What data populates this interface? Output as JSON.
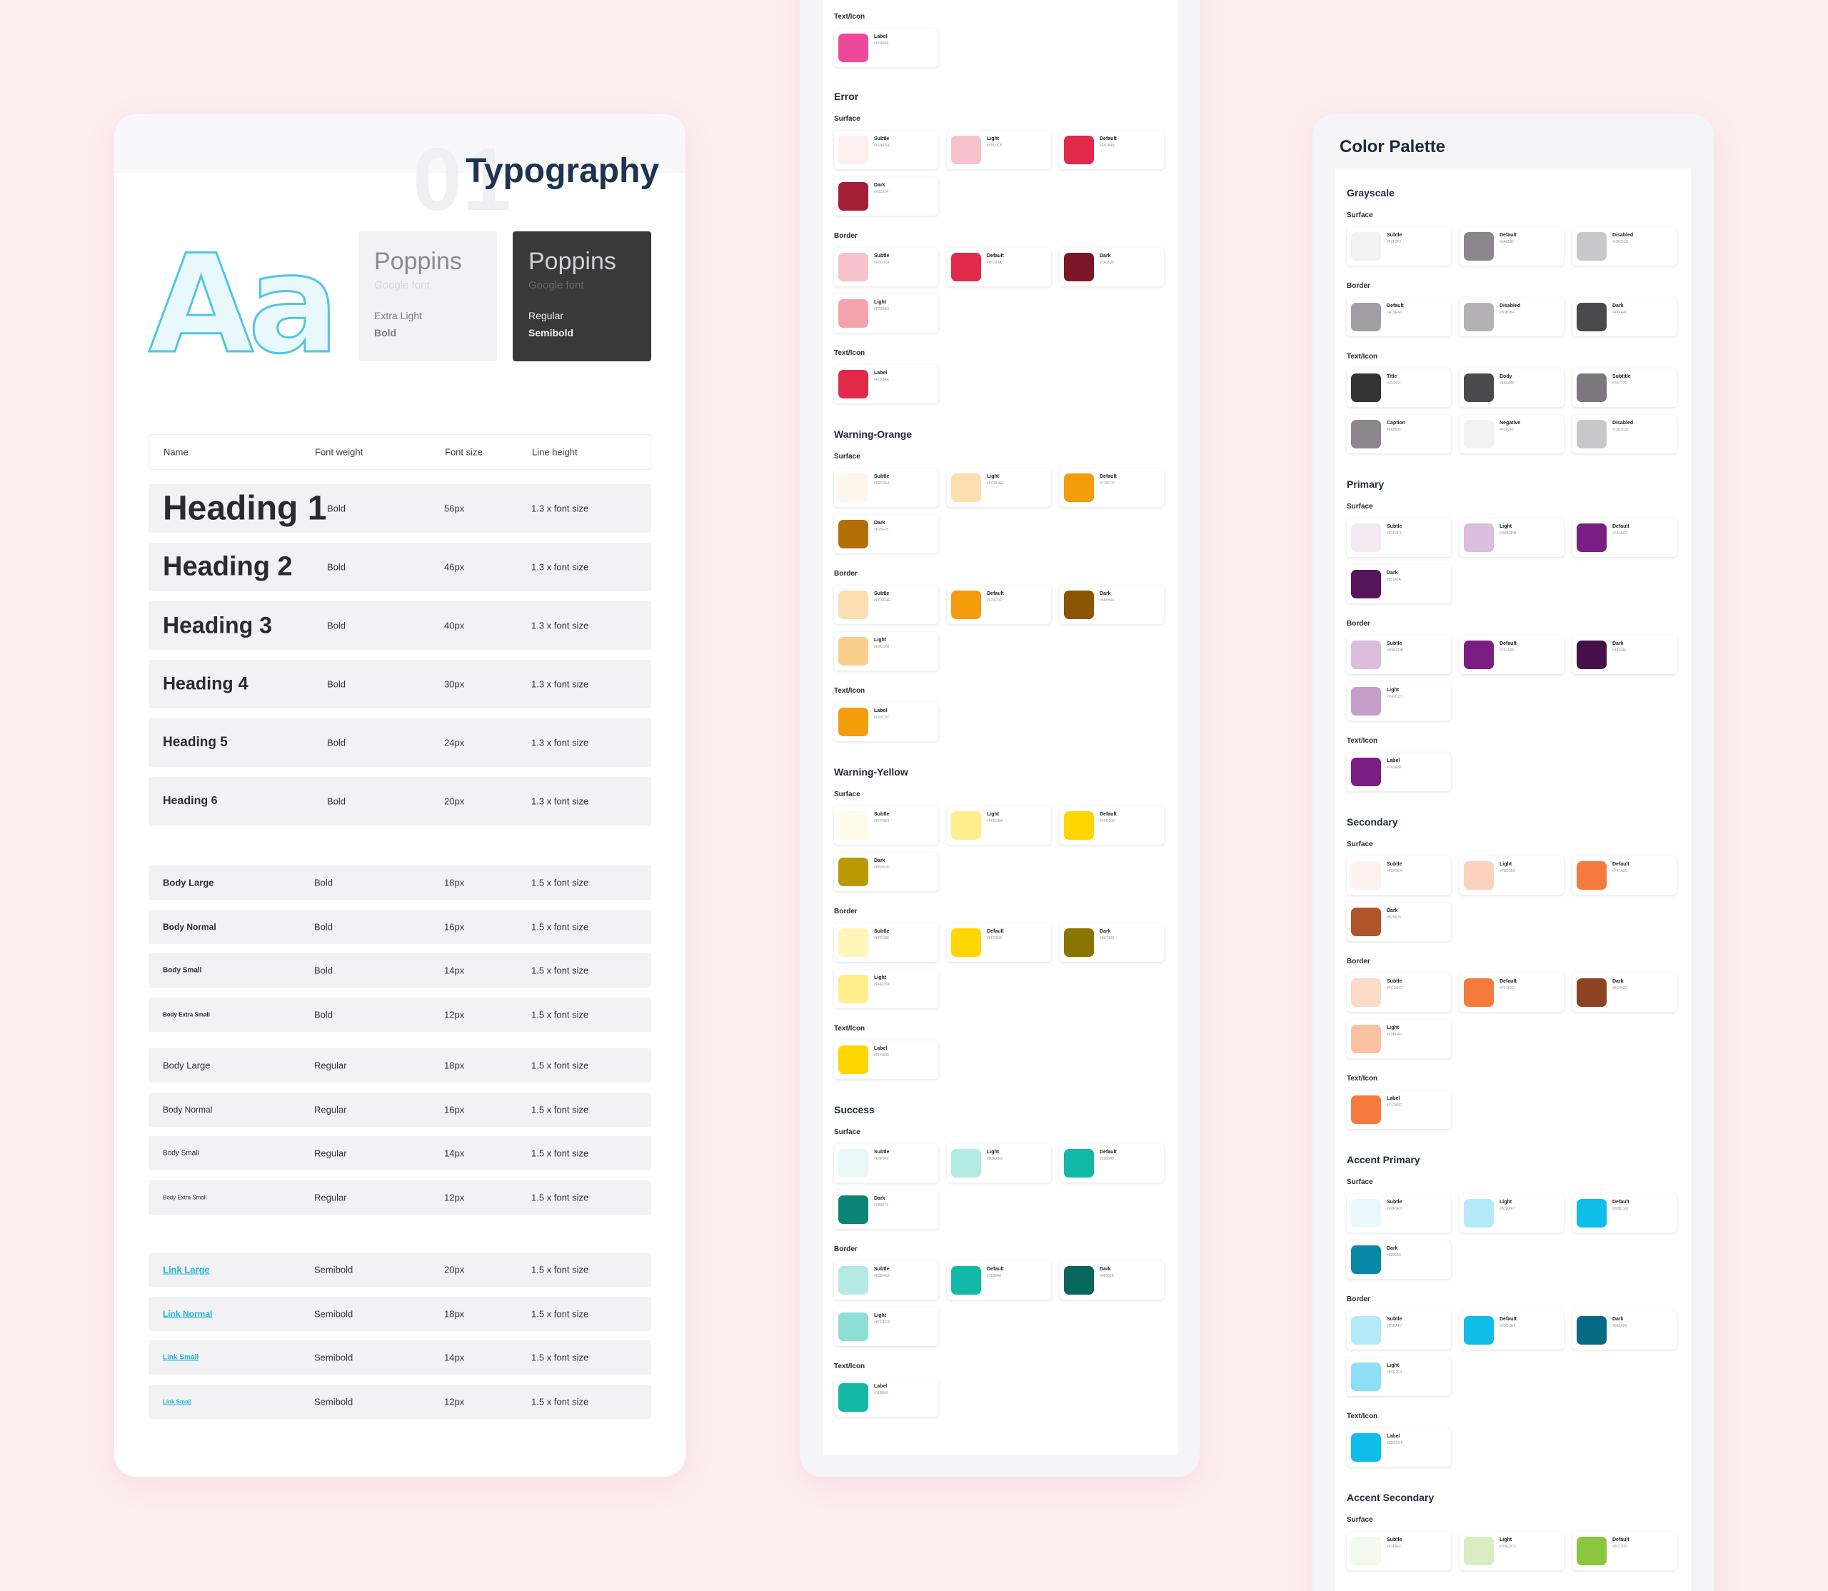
{
  "typography": {
    "number": "01",
    "title": "Typography",
    "specimen": "Aa",
    "font_light": {
      "name": "Poppins",
      "source": "Google font",
      "weight1": "Extra Light",
      "weight2": "Bold"
    },
    "font_dark": {
      "name": "Poppins",
      "source": "Google font",
      "weight1": "Regular",
      "weight2": "Semibold"
    },
    "headers": {
      "name": "Name",
      "weight": "Font weight",
      "size": "Font size",
      "line": "Line height"
    },
    "headings": [
      {
        "name": "Heading 1",
        "weight": "Bold",
        "size": "56px",
        "line": "1.3 x font size"
      },
      {
        "name": "Heading 2",
        "weight": "Bold",
        "size": "46px",
        "line": "1.3 x font size"
      },
      {
        "name": "Heading 3",
        "weight": "Bold",
        "size": "40px",
        "line": "1.3 x font size"
      },
      {
        "name": "Heading 4",
        "weight": "Bold",
        "size": "30px",
        "line": "1.3 x font size"
      },
      {
        "name": "Heading 5",
        "weight": "Bold",
        "size": "24px",
        "line": "1.3 x font size"
      },
      {
        "name": "Heading 6",
        "weight": "Bold",
        "size": "20px",
        "line": "1.3 x font size"
      }
    ],
    "body_bold": [
      {
        "name": "Body Large",
        "weight": "Bold",
        "size": "18px",
        "line": "1.5 x font size"
      },
      {
        "name": "Body Normal",
        "weight": "Bold",
        "size": "16px",
        "line": "1.5 x font size"
      },
      {
        "name": "Body Small",
        "weight": "Bold",
        "size": "14px",
        "line": "1.5 x font size"
      },
      {
        "name": "Body Extra Small",
        "weight": "Bold",
        "size": "12px",
        "line": "1.5 x font size"
      }
    ],
    "body_regular": [
      {
        "name": "Body Large",
        "weight": "Regular",
        "size": "18px",
        "line": "1.5 x font size"
      },
      {
        "name": "Body Normal",
        "weight": "Regular",
        "size": "16px",
        "line": "1.5 x font size"
      },
      {
        "name": "Body Small",
        "weight": "Regular",
        "size": "14px",
        "line": "1.5 x font size"
      },
      {
        "name": "Body Extra Small",
        "weight": "Regular",
        "size": "12px",
        "line": "1.5 x font size"
      }
    ],
    "links": [
      {
        "name": "Link Large",
        "weight": "Semibold",
        "size": "20px",
        "line": "1.5 x font size"
      },
      {
        "name": "Link Normal",
        "weight": "Semibold",
        "size": "18px",
        "line": "1.5 x font size"
      },
      {
        "name": "Link Small",
        "weight": "Semibold",
        "size": "14px",
        "line": "1.5 x font size"
      },
      {
        "name": "Link Small",
        "weight": "Semibold",
        "size": "12px",
        "line": "1.5 x font size"
      }
    ]
  },
  "middle_palette": {
    "top_section": {
      "sub": "Text/Icon",
      "swatches": [
        {
          "name": "Label",
          "hex": "#F0459A",
          "color": "#ef4898"
        }
      ]
    },
    "groups": [
      {
        "title": "Error",
        "sections": [
          {
            "sub": "Surface",
            "swatches": [
              {
                "name": "Subtle",
                "hex": "#FDEDEF",
                "color": "#fdeef0"
              },
              {
                "name": "Light",
                "hex": "#F5C0C8",
                "color": "#f7c2c9"
              },
              {
                "name": "Default",
                "hex": "#E0284A",
                "color": "#e2294a"
              },
              {
                "name": "Dark",
                "hex": "#A11E34",
                "color": "#a21e34"
              }
            ]
          },
          {
            "sub": "Border",
            "swatches": [
              {
                "name": "Subtle",
                "hex": "#F5C0C8",
                "color": "#f7c2c9"
              },
              {
                "name": "Default",
                "hex": "#E0284A",
                "color": "#e2294a"
              },
              {
                "name": "Dark",
                "hex": "#7A1526",
                "color": "#7b1626"
              },
              {
                "name": "Light",
                "hex": "#F29BA9",
                "color": "#f4a3ad"
              }
            ]
          },
          {
            "sub": "Text/Icon",
            "swatches": [
              {
                "name": "Label",
                "hex": "#E0284A",
                "color": "#e2294a"
              }
            ]
          }
        ]
      },
      {
        "title": "Warning-Orange",
        "sections": [
          {
            "sub": "Surface",
            "swatches": [
              {
                "name": "Subtle",
                "hex": "#FEF6EA",
                "color": "#fef6ea"
              },
              {
                "name": "Light",
                "hex": "#FCDDAE",
                "color": "#fcdfb1"
              },
              {
                "name": "Default",
                "hex": "#F29C0C",
                "color": "#f39c0c"
              },
              {
                "name": "Dark",
                "hex": "#B26F05",
                "color": "#b26f05"
              }
            ]
          },
          {
            "sub": "Border",
            "swatches": [
              {
                "name": "Subtle",
                "hex": "#FCDDAE",
                "color": "#fcdfb1"
              },
              {
                "name": "Default",
                "hex": "#F29C0C",
                "color": "#f39c0c"
              },
              {
                "name": "Dark",
                "hex": "#8A5504",
                "color": "#8b5604"
              },
              {
                "name": "Light",
                "hex": "#F9CC88",
                "color": "#f9cf8c"
              }
            ]
          },
          {
            "sub": "Text/Icon",
            "swatches": [
              {
                "name": "Label",
                "hex": "#F29C0C",
                "color": "#f39c0c"
              }
            ]
          }
        ]
      },
      {
        "title": "Warning-Yellow",
        "sections": [
          {
            "sub": "Surface",
            "swatches": [
              {
                "name": "Subtle",
                "hex": "#FFFBE8",
                "color": "#fffbe8"
              },
              {
                "name": "Light",
                "hex": "#FFED8A",
                "color": "#ffee8c"
              },
              {
                "name": "Default",
                "hex": "#FFD600",
                "color": "#ffd600"
              },
              {
                "name": "Dark",
                "hex": "#B89B00",
                "color": "#b89b03"
              }
            ]
          },
          {
            "sub": "Border",
            "swatches": [
              {
                "name": "Subtle",
                "hex": "#FFF5B8",
                "color": "#fff5b9"
              },
              {
                "name": "Default",
                "hex": "#FFD600",
                "color": "#ffd600"
              },
              {
                "name": "Dark",
                "hex": "#8A7400",
                "color": "#8a7502"
              },
              {
                "name": "Light",
                "hex": "#FFED8A",
                "color": "#ffee8c"
              }
            ]
          },
          {
            "sub": "Text/Icon",
            "swatches": [
              {
                "name": "Label",
                "hex": "#FFD600",
                "color": "#ffd600"
              }
            ]
          }
        ]
      },
      {
        "title": "Success",
        "sections": [
          {
            "sub": "Surface",
            "swatches": [
              {
                "name": "Subtle",
                "hex": "#E6F8F6",
                "color": "#e7f8f6"
              },
              {
                "name": "Light",
                "hex": "#B3EAE3",
                "color": "#b3eae4"
              },
              {
                "name": "Default",
                "hex": "#11B8A6",
                "color": "#12b9a7"
              },
              {
                "name": "Dark",
                "hex": "#0B8275",
                "color": "#0b8375"
              }
            ]
          },
          {
            "sub": "Border",
            "swatches": [
              {
                "name": "Subtle",
                "hex": "#B3EAE3",
                "color": "#b3eae4"
              },
              {
                "name": "Default",
                "hex": "#11B8A6",
                "color": "#12b9a7"
              },
              {
                "name": "Dark",
                "hex": "#08665B",
                "color": "#08675b"
              },
              {
                "name": "Light",
                "hex": "#8CDFD5",
                "color": "#8ddfd6"
              }
            ]
          },
          {
            "sub": "Text/Icon",
            "swatches": [
              {
                "name": "Label",
                "hex": "#11B8A6",
                "color": "#12b9a7"
              }
            ]
          }
        ]
      }
    ]
  },
  "right_palette": {
    "title": "Color Palette",
    "groups": [
      {
        "title": "Grayscale",
        "sections": [
          {
            "sub": "Surface",
            "swatches": [
              {
                "name": "Subtle",
                "hex": "#F2F2F2",
                "color": "#f2f2f2"
              },
              {
                "name": "Default",
                "hex": "#8A858C",
                "color": "#8a868c"
              },
              {
                "name": "Disabled",
                "hex": "#C8C6C8",
                "color": "#c8c7c9"
              }
            ]
          },
          {
            "sub": "Border",
            "swatches": [
              {
                "name": "Default",
                "hex": "#A19EA3",
                "color": "#a19ea3"
              },
              {
                "name": "Disabled",
                "hex": "#B3B1B4",
                "color": "#b3b1b4"
              },
              {
                "name": "Dark",
                "hex": "#4A4A4C",
                "color": "#4a4a4c"
              }
            ]
          },
          {
            "sub": "Text/Icon",
            "swatches": [
              {
                "name": "Title",
                "hex": "#333333",
                "color": "#333333"
              },
              {
                "name": "Body",
                "hex": "#4A4A4C",
                "color": "#4a4a4c"
              },
              {
                "name": "Subtitle",
                "hex": "#7B777C",
                "color": "#7b777d"
              },
              {
                "name": "Caption",
                "hex": "#8A858C",
                "color": "#8a868c"
              },
              {
                "name": "Negative",
                "hex": "#F2F2F2",
                "color": "#f2f2f2"
              },
              {
                "name": "Disabled",
                "hex": "#C8C6C8",
                "color": "#c8c7c9"
              }
            ]
          }
        ]
      },
      {
        "title": "Primary",
        "sections": [
          {
            "sub": "Surface",
            "swatches": [
              {
                "name": "Subtle",
                "hex": "#F3E9F3",
                "color": "#f3eaf4"
              },
              {
                "name": "Light",
                "hex": "#D9BCDB",
                "color": "#dabddc"
              },
              {
                "name": "Default",
                "hex": "#7A1E82",
                "color": "#7b1e83"
              },
              {
                "name": "Dark",
                "hex": "#55145A",
                "color": "#56155b"
              }
            ]
          },
          {
            "sub": "Border",
            "swatches": [
              {
                "name": "Subtle",
                "hex": "#D9BCDB",
                "color": "#dabddc"
              },
              {
                "name": "Default",
                "hex": "#7A1E82",
                "color": "#7b1e83"
              },
              {
                "name": "Dark",
                "hex": "#431046",
                "color": "#441047"
              },
              {
                "name": "Light",
                "hex": "#C49CC7",
                "color": "#c59dc8"
              }
            ]
          },
          {
            "sub": "Text/Icon",
            "swatches": [
              {
                "name": "Label",
                "hex": "#7A1E82",
                "color": "#7b1e83"
              }
            ]
          }
        ]
      },
      {
        "title": "Secondary",
        "sections": [
          {
            "sub": "Surface",
            "swatches": [
              {
                "name": "Subtle",
                "hex": "#FEF2EA",
                "color": "#fef3ec"
              },
              {
                "name": "Light",
                "hex": "#FBD1BC",
                "color": "#fbd2bd"
              },
              {
                "name": "Default",
                "hex": "#F47A3C",
                "color": "#f47b3d"
              },
              {
                "name": "Dark",
                "hex": "#B25626",
                "color": "#b05429"
              }
            ]
          },
          {
            "sub": "Border",
            "swatches": [
              {
                "name": "Subtle",
                "hex": "#FCDAC7",
                "color": "#fcdac8"
              },
              {
                "name": "Default",
                "hex": "#F47A3C",
                "color": "#f47b3d"
              },
              {
                "name": "Dark",
                "hex": "#8C4520",
                "color": "#8c4522"
              },
              {
                "name": "Light",
                "hex": "#F9BFA0",
                "color": "#f9c0a1"
              }
            ]
          },
          {
            "sub": "Text/Icon",
            "swatches": [
              {
                "name": "Label",
                "hex": "#F47A3C",
                "color": "#f47b3d"
              }
            ]
          }
        ]
      },
      {
        "title": "Accent Primary",
        "sections": [
          {
            "sub": "Surface",
            "swatches": [
              {
                "name": "Subtle",
                "hex": "#E8F9FD",
                "color": "#e9f9fd"
              },
              {
                "name": "Light",
                "hex": "#B3EAF7",
                "color": "#b4eaf7"
              },
              {
                "name": "Default",
                "hex": "#0DBCE8",
                "color": "#0ebde8"
              },
              {
                "name": "Dark",
                "hex": "#0886A6",
                "color": "#0887a7"
              }
            ]
          },
          {
            "sub": "Border",
            "swatches": [
              {
                "name": "Subtle",
                "hex": "#B3EAF7",
                "color": "#b4eaf7"
              },
              {
                "name": "Default",
                "hex": "#0DBCE8",
                "color": "#0ebde8"
              },
              {
                "name": "Dark",
                "hex": "#066A84",
                "color": "#066a84"
              },
              {
                "name": "Light",
                "hex": "#8CE0F4",
                "color": "#8de0f4"
              }
            ]
          },
          {
            "sub": "Text/Icon",
            "swatches": [
              {
                "name": "Label",
                "hex": "#0DBCE8",
                "color": "#0ebde8"
              }
            ]
          }
        ]
      },
      {
        "title": "Accent Secondary",
        "sections": [
          {
            "sub": "Surface",
            "swatches": [
              {
                "name": "Subtle",
                "hex": "#F3F9EC",
                "color": "#f3f9ec"
              },
              {
                "name": "Light",
                "hex": "#D9EDC3",
                "color": "#d9edc3"
              },
              {
                "name": "Default",
                "hex": "#8CC63F",
                "color": "#8cc63f"
              }
            ]
          }
        ]
      }
    ]
  }
}
